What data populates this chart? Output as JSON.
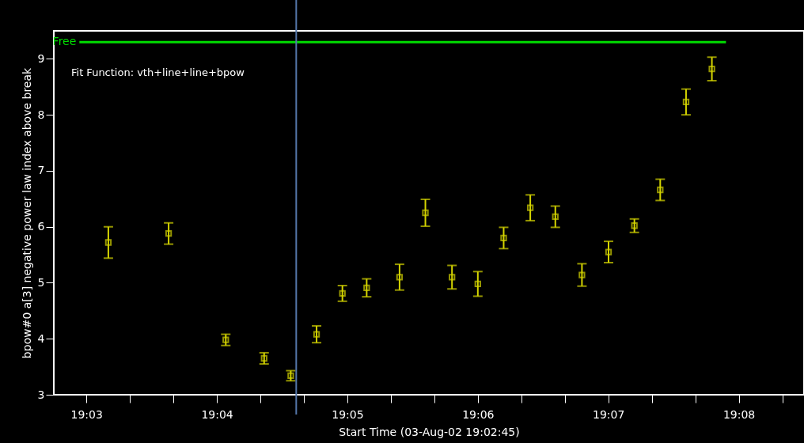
{
  "chart_data": {
    "type": "scatter",
    "xlabel": "Start Time (03-Aug-02 19:02:45)",
    "ylabel": "bpow#0 a[3]   negative power law index above break",
    "annotations": [
      "Fit Function: vth+line+line+bpow"
    ],
    "xlim": [
      19.045833,
      19.141667
    ],
    "xticks": [
      {
        "value": 19.05,
        "label": "19:03"
      },
      {
        "value": 19.055556,
        "label": null
      },
      {
        "value": 19.061111,
        "label": null
      },
      {
        "value": 19.066667,
        "label": "19:04"
      },
      {
        "value": 19.072222,
        "label": null
      },
      {
        "value": 19.077778,
        "label": null
      },
      {
        "value": 19.083333,
        "label": "19:05"
      },
      {
        "value": 19.088889,
        "label": null
      },
      {
        "value": 19.094444,
        "label": null
      },
      {
        "value": 19.1,
        "label": "19:06"
      },
      {
        "value": 19.105556,
        "label": null
      },
      {
        "value": 19.111111,
        "label": null
      },
      {
        "value": 19.116667,
        "label": "19:07"
      },
      {
        "value": 19.122222,
        "label": null
      },
      {
        "value": 19.127778,
        "label": null
      },
      {
        "value": 19.133333,
        "label": "19:08"
      },
      {
        "value": 19.138889,
        "label": null
      }
    ],
    "ylim": [
      3,
      9.5
    ],
    "yticks": [
      3,
      4,
      5,
      6,
      7,
      8,
      9
    ],
    "grid": false,
    "series": [
      {
        "color": "#d4d400",
        "marker": "square",
        "x": [
          19.0528,
          19.0605,
          19.0678,
          19.0727,
          19.0761,
          19.0794,
          19.0827,
          19.0858,
          19.09,
          19.0933,
          19.0967,
          19.1,
          19.1033,
          19.1067,
          19.1099,
          19.1133,
          19.1167,
          19.12,
          19.1233,
          19.1266,
          19.1299
        ],
        "values": [
          5.72,
          5.88,
          3.98,
          3.65,
          3.34,
          4.08,
          4.81,
          4.91,
          5.1,
          6.25,
          5.1,
          4.98,
          5.8,
          6.34,
          6.18,
          5.14,
          5.55,
          6.02,
          6.66,
          8.23,
          8.82
        ],
        "errors": [
          0.28,
          0.19,
          0.1,
          0.1,
          0.09,
          0.15,
          0.14,
          0.16,
          0.23,
          0.24,
          0.21,
          0.22,
          0.19,
          0.23,
          0.19,
          0.2,
          0.19,
          0.12,
          0.19,
          0.23,
          0.21
        ]
      },
      {
        "type": "line",
        "name": "Free",
        "color": "#00dd00",
        "marker": "none",
        "line_style": "solid",
        "x": [
          19.0491,
          19.1317
        ],
        "values": [
          9.3,
          9.3
        ]
      }
    ],
    "ref_lines": [
      {
        "axis": "x",
        "value": 19.0768,
        "label": null,
        "color": "#5577aa"
      }
    ]
  }
}
